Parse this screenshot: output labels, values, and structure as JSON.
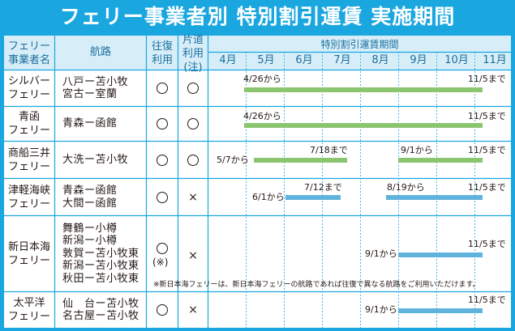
{
  "title": "フェリー事業者別 特別割引運賃 実施期間",
  "header": {
    "operator": [
      "フェリー",
      "事業者名"
    ],
    "route": "航路",
    "round_trip": [
      "往復",
      "利用"
    ],
    "one_way": [
      "片道",
      "利用",
      "(注)"
    ],
    "period_title": "特別割引運賃期間",
    "months": [
      "4月",
      "5月",
      "6月",
      "7月",
      "8月",
      "9月",
      "10月",
      "11月"
    ]
  },
  "rows": [
    {
      "operator": [
        "シルバー",
        "フェリー"
      ],
      "routes": [
        "八戸ー苫小牧",
        "宮古ー室蘭"
      ],
      "round_trip": "circle",
      "one_way": "circle",
      "labels": [
        "4/26から",
        "11/5まで"
      ]
    },
    {
      "operator": [
        "青函",
        "フェリー"
      ],
      "routes": [
        "青森ー函館"
      ],
      "round_trip": "circle",
      "one_way": "circle",
      "labels": [
        "4/26から",
        "11/5まで"
      ]
    },
    {
      "operator": [
        "商船三井",
        "フェリー"
      ],
      "routes": [
        "大洗ー苫小牧"
      ],
      "round_trip": "circle",
      "one_way": "circle",
      "labels": [
        "5/7から",
        "7/18まで",
        "9/1から",
        "11/5まで"
      ]
    },
    {
      "operator": [
        "津軽海峡",
        "フェリー"
      ],
      "routes": [
        "青森ー函館",
        "大間ー函館"
      ],
      "round_trip": "circle",
      "one_way": "cross",
      "labels": [
        "6/1から",
        "7/12まで",
        "8/19から",
        "11/5まで"
      ]
    },
    {
      "operator": [
        "新日本海",
        "フェリー"
      ],
      "routes": [
        "舞鶴ー小樽",
        "新潟ー小樽",
        "敦賀ー苫小牧東",
        "新潟ー苫小牧東",
        "秋田ー苫小牧東"
      ],
      "round_trip": "circle",
      "round_trip_note": "(※)",
      "one_way": "cross",
      "labels": [
        "9/1から",
        "11/5まで"
      ],
      "note": "※新日本海フェリーは、新日本海フェリーの航路であれば往復で異なる航路をご利用いただけます。"
    },
    {
      "operator": [
        "太平洋",
        "フェリー"
      ],
      "routes": [
        "仙　台ー苫小牧",
        "名古屋ー苫小牧"
      ],
      "round_trip": "circle",
      "one_way": "cross",
      "labels": [
        "9/1から",
        "11/5まで"
      ]
    }
  ],
  "colors": {
    "frame": "#1aa7e0",
    "header_bg": "#d7eef9",
    "green": "#8cc56f",
    "blue": "#60b3dd"
  },
  "symbols": {
    "circle": "○",
    "cross": "×"
  }
}
